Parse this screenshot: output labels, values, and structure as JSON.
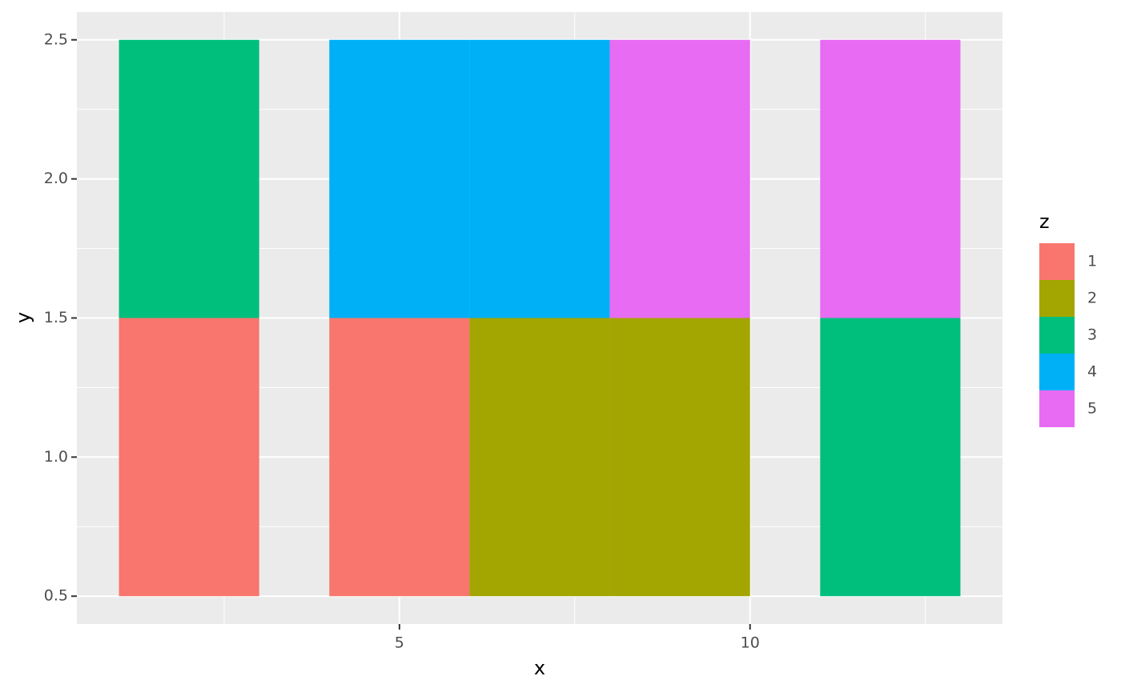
{
  "chart_data": {
    "type": "rect",
    "x_label": "x",
    "y_label": "y",
    "xlim": [
      0.4,
      13.6
    ],
    "xticks": [
      5,
      10
    ],
    "ylim": [
      0.4,
      2.6
    ],
    "yticks": [
      0.5,
      {
        "value": 1,
        "label": "1.0"
      },
      1.5,
      {
        "value": 2,
        "label": "2.0"
      },
      2.5
    ],
    "grid": true,
    "rects": [
      {
        "xmin": 1,
        "xmax": 3,
        "ymin": 0.5,
        "ymax": 1.5,
        "z": 1
      },
      {
        "xmin": 1,
        "xmax": 3,
        "ymin": 1.5,
        "ymax": 2.5,
        "z": 3
      },
      {
        "xmin": 4,
        "xmax": 6,
        "ymin": 0.5,
        "ymax": 1.5,
        "z": 1
      },
      {
        "xmin": 4,
        "xmax": 6,
        "ymin": 1.5,
        "ymax": 2.5,
        "z": 4
      },
      {
        "xmin": 6,
        "xmax": 8,
        "ymin": 0.5,
        "ymax": 1.5,
        "z": 2
      },
      {
        "xmin": 6,
        "xmax": 8,
        "ymin": 1.5,
        "ymax": 2.5,
        "z": 4
      },
      {
        "xmin": 8,
        "xmax": 10,
        "ymin": 0.5,
        "ymax": 1.5,
        "z": 2
      },
      {
        "xmin": 8,
        "xmax": 10,
        "ymin": 1.5,
        "ymax": 2.5,
        "z": 5
      },
      {
        "xmin": 11,
        "xmax": 13,
        "ymin": 0.5,
        "ymax": 1.5,
        "z": 3
      },
      {
        "xmin": 11,
        "xmax": 13,
        "ymin": 1.5,
        "ymax": 2.5,
        "z": 5
      }
    ],
    "legend": {
      "title": "z",
      "position": "right",
      "items": [
        {
          "label": 1,
          "color": "#F8766D"
        },
        {
          "label": 2,
          "color": "#A3A500"
        },
        {
          "label": 3,
          "color": "#00BF7D"
        },
        {
          "label": 4,
          "color": "#00B0F6"
        },
        {
          "label": 5,
          "color": "#E76BF3"
        }
      ]
    }
  }
}
